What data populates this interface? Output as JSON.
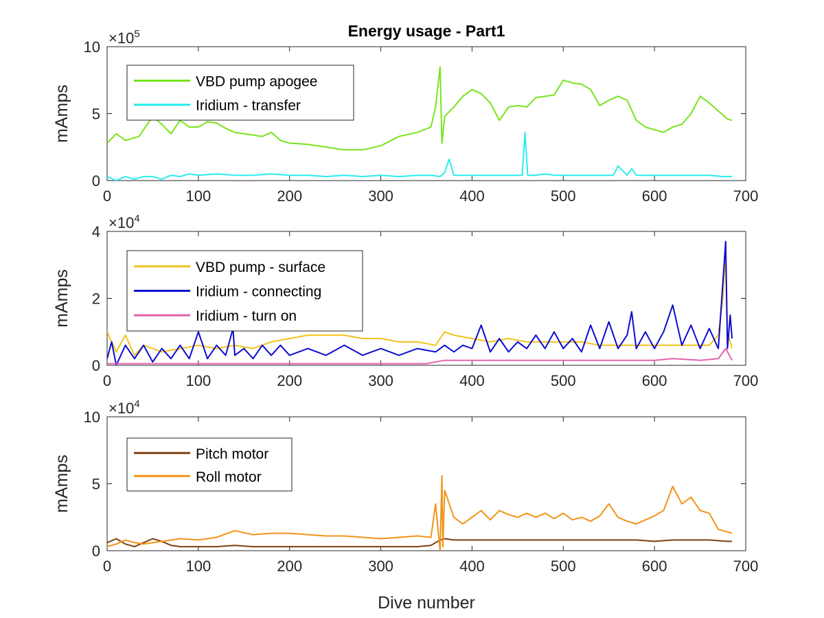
{
  "figure": {
    "title": "Energy usage - Part1",
    "xlabel": "Dive number"
  },
  "chart_data": [
    {
      "type": "line",
      "title": "Energy usage - Part1",
      "xlabel": "",
      "ylabel": "mAmps",
      "xlim": [
        0,
        700
      ],
      "ylim": [
        0,
        10
      ],
      "multiplier": "×10",
      "multiplier_exp": "5",
      "xticks": [
        "0",
        "100",
        "200",
        "300",
        "400",
        "500",
        "600",
        "700"
      ],
      "yticks": [
        "0",
        "5",
        "10"
      ],
      "xtick_values": [
        0,
        100,
        200,
        300,
        400,
        500,
        600,
        700
      ],
      "ytick_values": [
        0,
        5,
        10
      ],
      "legend_position": "top-left",
      "series": [
        {
          "name": "VBD pump apogee",
          "color": "#77e41b",
          "x": [
            0,
            10,
            20,
            35,
            50,
            60,
            70,
            80,
            90,
            100,
            110,
            120,
            130,
            140,
            150,
            160,
            170,
            180,
            190,
            200,
            220,
            240,
            260,
            280,
            300,
            320,
            340,
            355,
            360,
            365,
            367,
            370,
            380,
            390,
            400,
            410,
            420,
            430,
            440,
            450,
            460,
            470,
            480,
            490,
            500,
            510,
            520,
            530,
            540,
            550,
            560,
            570,
            580,
            590,
            600,
            610,
            620,
            630,
            640,
            650,
            660,
            670,
            680,
            685
          ],
          "y": [
            2.8,
            3.5,
            3.0,
            3.3,
            4.8,
            4.2,
            3.5,
            4.5,
            4.0,
            4.0,
            4.4,
            4.3,
            3.9,
            3.6,
            3.5,
            3.4,
            3.3,
            3.6,
            3.0,
            2.8,
            2.7,
            2.5,
            2.3,
            2.3,
            2.6,
            3.3,
            3.6,
            4.0,
            5.5,
            8.5,
            2.8,
            4.8,
            5.5,
            6.3,
            6.8,
            6.5,
            5.8,
            4.5,
            5.5,
            5.6,
            5.5,
            6.2,
            6.3,
            6.4,
            7.5,
            7.3,
            7.2,
            6.8,
            5.6,
            6.0,
            6.3,
            6.0,
            4.5,
            4.0,
            3.8,
            3.6,
            4.0,
            4.2,
            5.0,
            6.3,
            5.8,
            5.2,
            4.6,
            4.5
          ]
        },
        {
          "name": "Iridium - transfer",
          "color": "#2cecec",
          "x": [
            0,
            10,
            20,
            30,
            40,
            50,
            60,
            70,
            80,
            90,
            100,
            120,
            140,
            160,
            180,
            200,
            220,
            240,
            260,
            280,
            300,
            320,
            340,
            355,
            365,
            370,
            375,
            380,
            390,
            400,
            420,
            440,
            455,
            458,
            461,
            470,
            480,
            490,
            500,
            520,
            540,
            555,
            560,
            570,
            575,
            580,
            600,
            620,
            640,
            660,
            675,
            685
          ],
          "y": [
            0.3,
            0.0,
            0.3,
            0.1,
            0.3,
            0.3,
            0.1,
            0.4,
            0.3,
            0.5,
            0.4,
            0.5,
            0.4,
            0.4,
            0.5,
            0.4,
            0.4,
            0.3,
            0.4,
            0.3,
            0.4,
            0.3,
            0.4,
            0.4,
            0.3,
            0.6,
            1.6,
            0.4,
            0.4,
            0.4,
            0.4,
            0.4,
            0.4,
            3.6,
            0.4,
            0.4,
            0.5,
            0.4,
            0.4,
            0.4,
            0.4,
            0.4,
            1.1,
            0.4,
            0.9,
            0.4,
            0.4,
            0.4,
            0.4,
            0.4,
            0.3,
            0.3
          ]
        }
      ]
    },
    {
      "type": "line",
      "title": "",
      "xlabel": "",
      "ylabel": "mAmps",
      "xlim": [
        0,
        700
      ],
      "ylim": [
        0,
        4
      ],
      "multiplier": "×10",
      "multiplier_exp": "4",
      "xticks": [
        "0",
        "100",
        "200",
        "300",
        "400",
        "500",
        "600",
        "700"
      ],
      "yticks": [
        "0",
        "2",
        "4"
      ],
      "xtick_values": [
        0,
        100,
        200,
        300,
        400,
        500,
        600,
        700
      ],
      "ytick_values": [
        0,
        2,
        4
      ],
      "legend_position": "top-left",
      "series": [
        {
          "name": "VBD pump - surface",
          "color": "#f2c31b",
          "x": [
            0,
            10,
            20,
            30,
            40,
            60,
            80,
            100,
            120,
            140,
            160,
            180,
            200,
            220,
            240,
            260,
            280,
            300,
            320,
            340,
            360,
            370,
            380,
            400,
            420,
            440,
            460,
            480,
            500,
            520,
            540,
            560,
            580,
            600,
            620,
            640,
            660,
            670,
            675,
            678,
            680,
            685
          ],
          "y": [
            1.0,
            0.4,
            0.9,
            0.3,
            0.6,
            0.4,
            0.5,
            0.6,
            0.5,
            0.6,
            0.5,
            0.7,
            0.8,
            0.9,
            0.9,
            0.9,
            0.8,
            0.8,
            0.7,
            0.7,
            0.6,
            1.0,
            0.9,
            0.8,
            0.7,
            0.8,
            0.7,
            0.7,
            0.7,
            0.7,
            0.6,
            0.6,
            0.6,
            0.6,
            0.6,
            0.6,
            0.6,
            0.9,
            2.0,
            3.3,
            1.0,
            0.5
          ]
        },
        {
          "name": "Iridium - connecting",
          "color": "#0b0bd1",
          "x": [
            0,
            5,
            10,
            20,
            30,
            40,
            50,
            60,
            70,
            80,
            90,
            100,
            110,
            120,
            130,
            138,
            140,
            150,
            160,
            170,
            180,
            190,
            200,
            220,
            240,
            260,
            280,
            300,
            320,
            340,
            360,
            370,
            380,
            390,
            400,
            410,
            420,
            430,
            440,
            450,
            460,
            470,
            480,
            490,
            500,
            510,
            520,
            530,
            540,
            550,
            560,
            570,
            575,
            580,
            590,
            600,
            610,
            620,
            630,
            640,
            650,
            660,
            670,
            675,
            678,
            680,
            683,
            685
          ],
          "y": [
            0.2,
            0.7,
            0.0,
            0.6,
            0.2,
            0.6,
            0.1,
            0.5,
            0.2,
            0.6,
            0.2,
            1.0,
            0.2,
            0.6,
            0.3,
            1.1,
            0.3,
            0.5,
            0.2,
            0.6,
            0.3,
            0.6,
            0.3,
            0.5,
            0.3,
            0.6,
            0.3,
            0.5,
            0.3,
            0.5,
            0.4,
            0.6,
            0.4,
            0.6,
            0.5,
            1.2,
            0.4,
            0.8,
            0.4,
            0.7,
            0.5,
            0.9,
            0.5,
            1.0,
            0.5,
            0.8,
            0.4,
            1.2,
            0.5,
            1.3,
            0.5,
            0.9,
            1.6,
            0.5,
            1.0,
            0.5,
            1.0,
            1.8,
            0.6,
            1.2,
            0.5,
            1.1,
            0.5,
            2.5,
            3.7,
            0.5,
            1.5,
            0.8
          ]
        },
        {
          "name": "Iridium - turn on",
          "color": "#e462ae",
          "x": [
            0,
            50,
            100,
            150,
            200,
            250,
            300,
            350,
            360,
            370,
            400,
            450,
            500,
            550,
            600,
            620,
            650,
            670,
            678,
            685
          ],
          "y": [
            0.05,
            0.05,
            0.05,
            0.05,
            0.05,
            0.05,
            0.05,
            0.05,
            0.1,
            0.15,
            0.15,
            0.15,
            0.15,
            0.15,
            0.15,
            0.2,
            0.15,
            0.2,
            0.5,
            0.15
          ]
        }
      ]
    },
    {
      "type": "line",
      "title": "",
      "xlabel": "Dive number",
      "ylabel": "mAmps",
      "xlim": [
        0,
        700
      ],
      "ylim": [
        0,
        10
      ],
      "multiplier": "×10",
      "multiplier_exp": "4",
      "xticks": [
        "0",
        "100",
        "200",
        "300",
        "400",
        "500",
        "600",
        "700"
      ],
      "yticks": [
        "0",
        "5",
        "10"
      ],
      "xtick_values": [
        0,
        100,
        200,
        300,
        400,
        500,
        600,
        700
      ],
      "ytick_values": [
        0,
        5,
        10
      ],
      "legend_position": "top-left",
      "series": [
        {
          "name": "Pitch motor",
          "color": "#7f3f10",
          "x": [
            0,
            10,
            20,
            30,
            40,
            50,
            60,
            70,
            80,
            100,
            120,
            140,
            160,
            180,
            200,
            220,
            240,
            260,
            280,
            300,
            320,
            340,
            355,
            360,
            365,
            370,
            380,
            400,
            420,
            440,
            460,
            480,
            500,
            520,
            540,
            560,
            580,
            600,
            620,
            640,
            660,
            680,
            685
          ],
          "y": [
            0.6,
            0.9,
            0.5,
            0.3,
            0.6,
            0.9,
            0.7,
            0.4,
            0.3,
            0.3,
            0.3,
            0.4,
            0.3,
            0.3,
            0.3,
            0.3,
            0.3,
            0.3,
            0.3,
            0.3,
            0.3,
            0.3,
            0.4,
            0.6,
            0.8,
            0.9,
            0.8,
            0.8,
            0.8,
            0.8,
            0.8,
            0.8,
            0.8,
            0.8,
            0.8,
            0.8,
            0.8,
            0.7,
            0.8,
            0.8,
            0.8,
            0.7,
            0.7
          ]
        },
        {
          "name": "Roll motor",
          "color": "#f29314",
          "x": [
            0,
            10,
            20,
            30,
            40,
            60,
            80,
            100,
            120,
            140,
            160,
            180,
            200,
            220,
            240,
            260,
            280,
            300,
            320,
            340,
            355,
            360,
            365,
            367,
            368,
            370,
            380,
            390,
            400,
            410,
            420,
            430,
            440,
            450,
            460,
            470,
            480,
            490,
            500,
            510,
            520,
            530,
            540,
            550,
            560,
            570,
            580,
            590,
            600,
            610,
            620,
            630,
            640,
            650,
            660,
            670,
            680,
            685
          ],
          "y": [
            0.3,
            0.5,
            0.8,
            0.6,
            0.5,
            0.7,
            0.9,
            0.8,
            1.0,
            1.5,
            1.2,
            1.3,
            1.3,
            1.2,
            1.1,
            1.1,
            1.0,
            0.9,
            1.0,
            1.1,
            1.0,
            3.5,
            0.0,
            5.6,
            0.3,
            4.5,
            2.5,
            2.0,
            2.5,
            3.0,
            2.3,
            3.0,
            2.7,
            2.5,
            2.8,
            2.5,
            2.8,
            2.4,
            2.8,
            2.3,
            2.5,
            2.2,
            2.6,
            3.5,
            2.5,
            2.2,
            2.0,
            2.3,
            2.6,
            3.0,
            4.8,
            3.5,
            4.0,
            3.0,
            2.8,
            1.6,
            1.4,
            1.3
          ]
        }
      ]
    }
  ]
}
